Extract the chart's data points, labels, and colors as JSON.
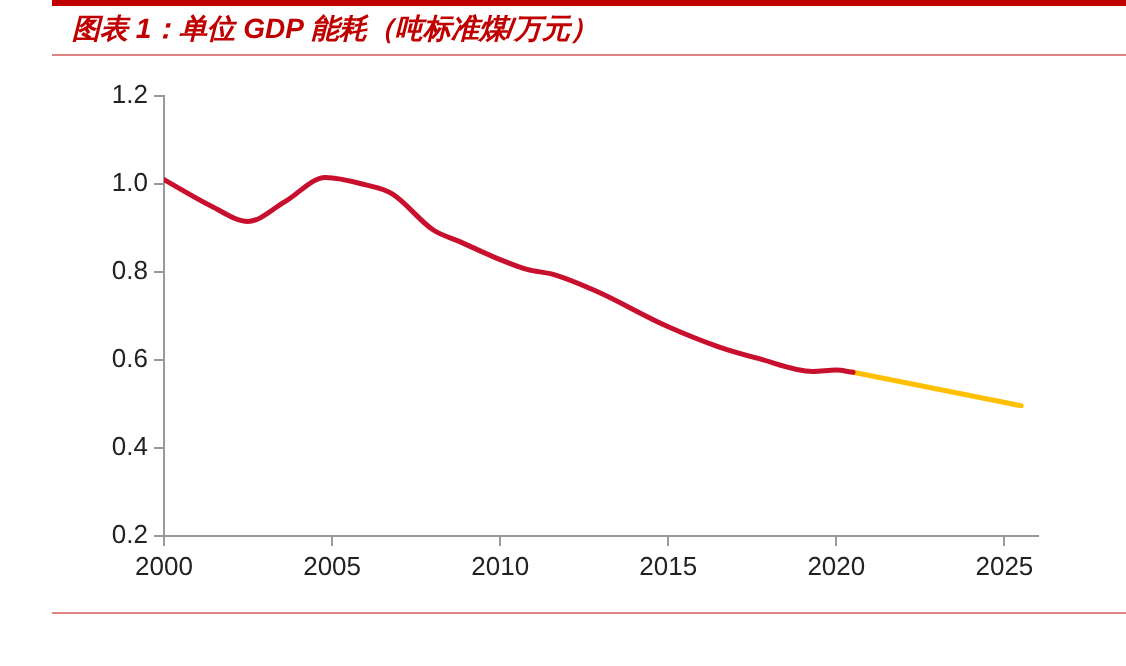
{
  "chart_data": {
    "type": "line",
    "title": "图表 1：单位 GDP 能耗（吨标准煤/万元）",
    "series": [
      {
        "color": "#c8102e",
        "x": [
          2000,
          2001.4,
          2002.5,
          2003.6,
          2004.8,
          2006,
          2006.8,
          2008,
          2008.8,
          2010,
          2010.8,
          2011.6,
          2012.9,
          2014.9,
          2016.5,
          2017.7,
          2019.3,
          2020,
          2020.5
        ],
        "values": [
          1.01,
          0.95,
          0.915,
          0.96,
          1.015,
          0.998,
          0.977,
          0.896,
          0.869,
          0.828,
          0.806,
          0.794,
          0.755,
          0.679,
          0.63,
          0.603,
          0.574,
          0.577,
          0.572
        ]
      },
      {
        "color": "#ffc000",
        "x": [
          2020.5,
          2025.5
        ],
        "values": [
          0.572,
          0.496
        ]
      }
    ],
    "xlim": [
      2000,
      2026
    ],
    "xticks": [
      2000,
      2005,
      2010,
      2015,
      2020,
      2025
    ],
    "ylim": [
      0.2,
      1.2
    ],
    "yticks": [
      0.2,
      0.4,
      0.6,
      0.8,
      {
        "value": 1,
        "label": "1.0"
      },
      1.2
    ],
    "grid": false,
    "legend": false,
    "marker": "none",
    "line_style": "solid"
  }
}
